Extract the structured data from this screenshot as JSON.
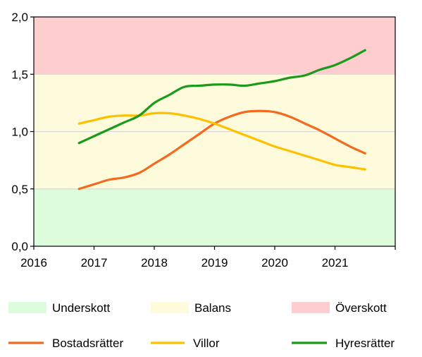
{
  "chart_data": {
    "type": "line",
    "title": "",
    "xlabel": "",
    "ylabel": "",
    "xlim": [
      2016,
      2022
    ],
    "ylim": [
      0,
      2.0
    ],
    "x_ticks": [
      2016,
      2017,
      2018,
      2019,
      2020,
      2021
    ],
    "x_tick_labels": [
      "2016",
      "2017",
      "2018",
      "2019",
      "2020",
      "2021"
    ],
    "y_ticks": [
      0,
      0.5,
      1.0,
      1.5,
      2.0
    ],
    "y_tick_labels": [
      "0,0",
      "0,5",
      "1,0",
      "1,5",
      "2,0"
    ],
    "grid": "horizontal",
    "bands": [
      {
        "name": "Underskott",
        "from": 0,
        "to": 0.5,
        "color": "#dcfcdc"
      },
      {
        "name": "Balans",
        "from": 0.5,
        "to": 1.5,
        "color": "#fefbdc"
      },
      {
        "name": "Överskott",
        "from": 1.5,
        "to": 2.0,
        "color": "#fecdcd"
      }
    ],
    "series": [
      {
        "name": "Bostadsrätter",
        "color": "#f26b21",
        "x": [
          2016.75,
          2017.0,
          2017.25,
          2017.5,
          2017.75,
          2018.0,
          2018.25,
          2018.5,
          2018.75,
          2019.0,
          2019.25,
          2019.5,
          2019.75,
          2020.0,
          2020.25,
          2020.5,
          2020.75,
          2021.0,
          2021.25,
          2021.5
        ],
        "y": [
          0.5,
          0.54,
          0.58,
          0.6,
          0.64,
          0.72,
          0.8,
          0.89,
          0.98,
          1.07,
          1.13,
          1.17,
          1.18,
          1.17,
          1.13,
          1.07,
          1.01,
          0.94,
          0.87,
          0.81
        ]
      },
      {
        "name": "Villor",
        "color": "#ffc000",
        "x": [
          2016.75,
          2017.0,
          2017.25,
          2017.5,
          2017.75,
          2018.0,
          2018.25,
          2018.5,
          2018.75,
          2019.0,
          2019.25,
          2019.5,
          2019.75,
          2020.0,
          2020.25,
          2020.5,
          2020.75,
          2021.0,
          2021.25,
          2021.5
        ],
        "y": [
          1.07,
          1.1,
          1.13,
          1.14,
          1.14,
          1.16,
          1.16,
          1.14,
          1.11,
          1.07,
          1.02,
          0.97,
          0.92,
          0.87,
          0.83,
          0.79,
          0.75,
          0.71,
          0.69,
          0.67
        ]
      },
      {
        "name": "Hyresrätter",
        "color": "#1b9b1b",
        "x": [
          2016.75,
          2017.0,
          2017.25,
          2017.5,
          2017.75,
          2018.0,
          2018.25,
          2018.5,
          2018.75,
          2019.0,
          2019.25,
          2019.5,
          2019.75,
          2020.0,
          2020.25,
          2020.5,
          2020.75,
          2021.0,
          2021.25,
          2021.5
        ],
        "y": [
          0.9,
          0.96,
          1.02,
          1.08,
          1.14,
          1.25,
          1.32,
          1.39,
          1.4,
          1.41,
          1.41,
          1.4,
          1.42,
          1.44,
          1.47,
          1.49,
          1.54,
          1.58,
          1.64,
          1.71
        ]
      }
    ],
    "legend": {
      "placement": "bottom",
      "band_entries": [
        "Underskott",
        "Balans",
        "Överskott"
      ],
      "series_entries": [
        "Bostadsrätter",
        "Villor",
        "Hyresrätter"
      ]
    }
  }
}
